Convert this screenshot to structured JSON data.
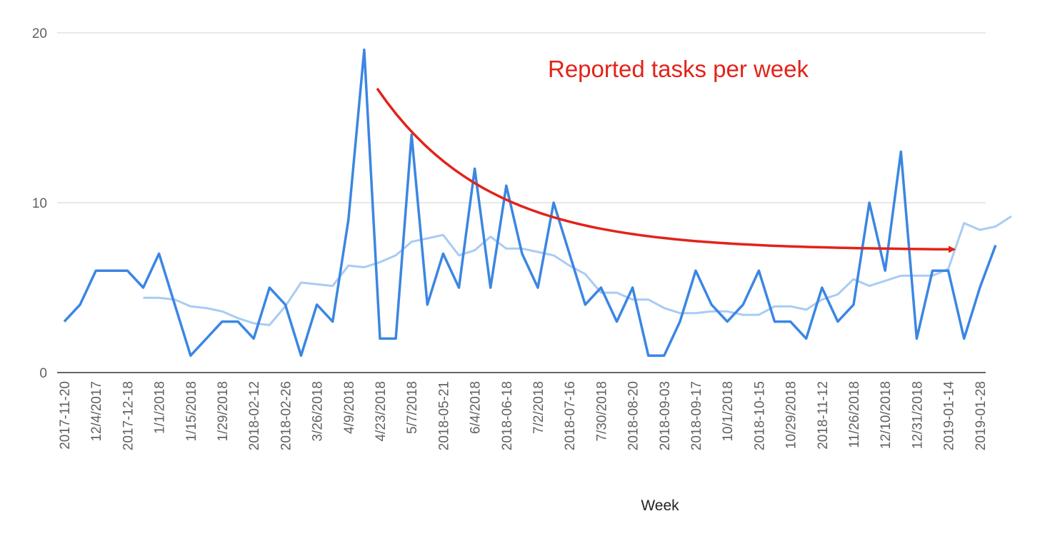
{
  "chart_data": {
    "type": "line",
    "title": "",
    "xlabel": "Week",
    "ylabel": "",
    "ylim": [
      0,
      20
    ],
    "y_ticks": [
      "0",
      "10",
      "20"
    ],
    "x_tick_labels": [
      "2017-11-20",
      "12/4/2017",
      "2017-12-18",
      "1/1/2018",
      "1/15/2018",
      "1/29/2018",
      "2018-02-12",
      "2018-02-26",
      "3/26/2018",
      "4/9/2018",
      "4/23/2018",
      "5/7/2018",
      "2018-05-21",
      "6/4/2018",
      "2018-06-18",
      "7/2/2018",
      "2018-07-16",
      "7/30/2018",
      "2018-08-20",
      "2018-09-03",
      "2018-09-17",
      "10/1/2018",
      "2018-10-15",
      "10/29/2018",
      "2018-11-12",
      "11/26/2018",
      "12/10/2018",
      "12/31/2018",
      "2019-01-14",
      "2019-01-28"
    ],
    "grid": true,
    "legend": "none",
    "colors": {
      "primary": "#3b86e3",
      "trend": "#a9cbf5",
      "annotation": "#e2231a",
      "gridline": "#d9d9d9",
      "baseline": "#333333"
    },
    "series": [
      {
        "role": "weekly",
        "values": [
          3,
          4,
          6,
          6,
          6,
          5,
          7,
          4,
          1,
          2,
          3,
          3,
          2,
          5,
          4,
          1,
          4,
          3,
          9,
          19,
          2,
          2,
          14,
          4,
          7,
          5,
          12,
          5,
          11,
          7,
          5,
          10,
          7,
          4,
          5,
          3,
          5,
          1,
          1,
          3,
          6,
          4,
          3,
          4,
          6,
          3,
          3,
          2,
          5,
          3,
          4,
          10,
          6,
          13,
          2,
          6,
          6,
          2,
          5,
          7.5
        ]
      },
      {
        "role": "trend",
        "start_index": 5,
        "values": [
          4.4,
          4.4,
          4.3,
          3.9,
          3.8,
          3.6,
          3.2,
          2.9,
          2.8,
          3.9,
          5.3,
          5.2,
          5.1,
          6.3,
          6.2,
          6.5,
          6.9,
          7.7,
          7.9,
          8.1,
          6.9,
          7.2,
          8.0,
          7.3,
          7.3,
          7.1,
          6.9,
          6.3,
          5.8,
          4.7,
          4.7,
          4.3,
          4.3,
          3.8,
          3.5,
          3.5,
          3.6,
          3.6,
          3.4,
          3.4,
          3.9,
          3.9,
          3.7,
          4.3,
          4.6,
          5.5,
          5.1,
          5.4,
          5.7,
          5.7,
          5.7,
          6.1,
          8.8,
          8.4,
          8.6,
          9.2
        ]
      }
    ],
    "annotation": {
      "text": "Reported tasks per week",
      "arrow": "red curve descending from the 4/23/2018 peak and flattening toward 2019-01-28"
    }
  }
}
